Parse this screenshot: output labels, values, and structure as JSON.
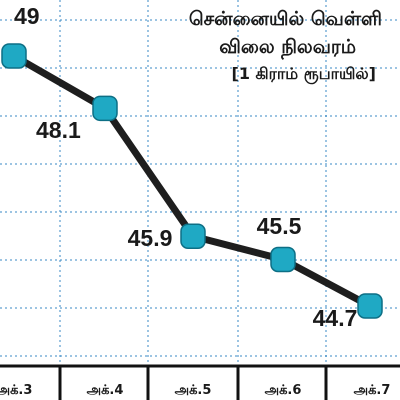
{
  "chart_data": {
    "type": "line",
    "title": "சென்னையில் வெள்ளி",
    "subtitle": "விலை நிலவரம்",
    "unit_note": "[1 கிராம் ரூபாயில்]",
    "categories": [
      "அக்.3",
      "அக்.4",
      "அக்.5",
      "அக்.6",
      "அக்.7"
    ],
    "values": [
      49,
      48.1,
      45.9,
      45.5,
      44.7
    ],
    "value_labels": [
      "49",
      "48.1",
      "45.9",
      "45.5",
      "44.7"
    ],
    "ylim": [
      43.5,
      50
    ],
    "grid": true,
    "xlabel": "",
    "ylabel": "",
    "colors": {
      "line": "#1e1e1e",
      "marker_fill": "#1fa9c4",
      "marker_stroke": "#0d6f85",
      "grid": "#3a8ac4",
      "axis": "#111111",
      "text": "#1a1a1a"
    }
  }
}
